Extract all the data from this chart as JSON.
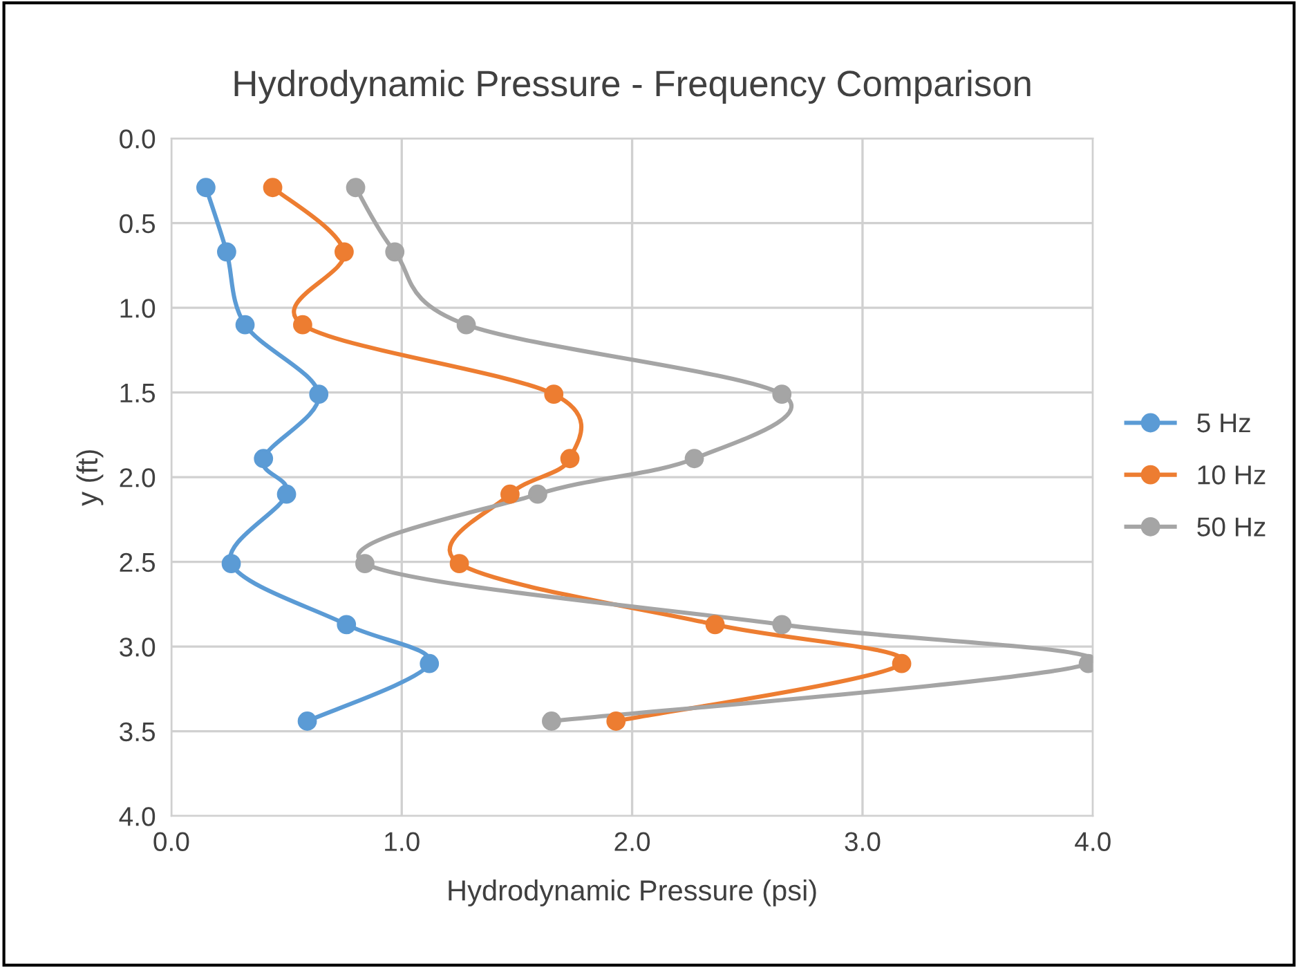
{
  "chart_data": {
    "type": "line",
    "title": "Hydrodynamic Pressure - Frequency Comparison",
    "xlabel": "Hydrodynamic Pressure (psi)",
    "ylabel": "y (ft)",
    "series": [
      {
        "name": "5 Hz",
        "color": "#5b9bd5",
        "x": [
          0.15,
          0.24,
          0.32,
          0.64,
          0.4,
          0.5,
          0.26,
          0.76,
          1.12,
          0.59
        ],
        "values": [
          0.29,
          0.67,
          1.1,
          1.51,
          1.89,
          2.1,
          2.51,
          2.87,
          3.1,
          3.44
        ]
      },
      {
        "name": "10 Hz",
        "color": "#ed7d31",
        "x": [
          0.44,
          0.75,
          0.57,
          1.66,
          1.73,
          1.47,
          1.25,
          2.36,
          3.17,
          1.93
        ],
        "values": [
          0.29,
          0.67,
          1.1,
          1.51,
          1.89,
          2.1,
          2.51,
          2.87,
          3.1,
          3.44
        ]
      },
      {
        "name": "50 Hz",
        "color": "#a5a5a5",
        "x": [
          0.8,
          0.97,
          1.28,
          2.65,
          2.27,
          1.59,
          0.84,
          2.65,
          3.98,
          1.65
        ],
        "values": [
          0.29,
          0.67,
          1.1,
          1.51,
          1.89,
          2.1,
          2.51,
          2.87,
          3.1,
          3.44
        ]
      }
    ],
    "xlim": [
      0,
      4
    ],
    "xticks": [
      {
        "value": 0,
        "label": "0.0"
      },
      {
        "value": 1,
        "label": "1.0"
      },
      {
        "value": 2,
        "label": "2.0"
      },
      {
        "value": 3,
        "label": "3.0"
      },
      {
        "value": 4,
        "label": "4.0"
      }
    ],
    "ylim": [
      4,
      0
    ],
    "yticks": [
      {
        "value": 0,
        "label": "0.0"
      },
      {
        "value": 0.5,
        "label": "0.5"
      },
      {
        "value": 1,
        "label": "1.0"
      },
      {
        "value": 1.5,
        "label": "1.5"
      },
      {
        "value": 2,
        "label": "2.0"
      },
      {
        "value": 2.5,
        "label": "2.5"
      },
      {
        "value": 3,
        "label": "3.0"
      },
      {
        "value": 3.5,
        "label": "3.5"
      },
      {
        "value": 4,
        "label": "4.0"
      }
    ],
    "grid": true,
    "legend": "right",
    "marker": "circle",
    "line_style": "solid"
  }
}
